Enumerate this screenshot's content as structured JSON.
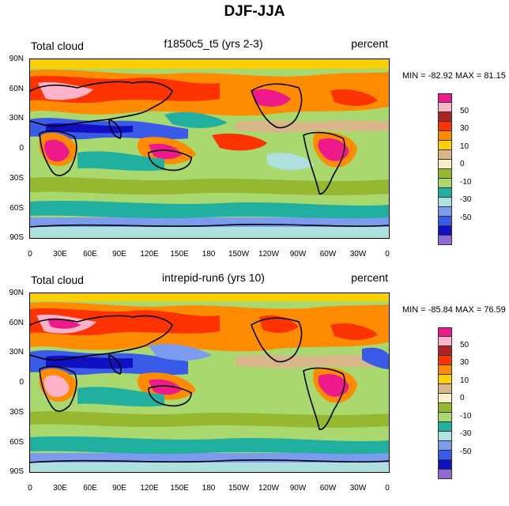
{
  "figure_title": "DJF-JJA",
  "panels": [
    {
      "left_label": "Total cloud",
      "center_label": "f1850c5_t5 (yrs 2-3)",
      "right_label": "percent",
      "min_max": "MIN = -82.92 MAX =  81.15"
    },
    {
      "left_label": "Total cloud",
      "center_label": "intrepid-run6 (yrs 10)",
      "right_label": "percent",
      "min_max": "MIN = -85.84 MAX =  76.59"
    }
  ],
  "lat_ticks": [
    "90N",
    "60N",
    "30N",
    "0",
    "30S",
    "60S",
    "90S"
  ],
  "lon_ticks": [
    "0",
    "30E",
    "60E",
    "90E",
    "120E",
    "150E",
    "180",
    "150W",
    "120W",
    "90W",
    "60W",
    "30W",
    "0"
  ],
  "legend": {
    "colors": [
      "#ee1a8c",
      "#ffb3c8",
      "#b02323",
      "#ff3300",
      "#ff8c00",
      "#ffd000",
      "#d9b68a",
      "#fbeec7",
      "#95b830",
      "#a9d86e",
      "#21b0a0",
      "#aee0e0",
      "#7b9cee",
      "#3a5ae8",
      "#1010c0",
      "#8f6ad6"
    ],
    "labels": [
      "50",
      "30",
      "10",
      "0",
      "-10",
      "-30",
      "-50"
    ]
  },
  "colors": {
    "pink": "#ee1a8c",
    "light_pink": "#ffb3c8",
    "dark_red": "#b02323",
    "red": "#ff3300",
    "orange": "#ff8c00",
    "yellow": "#ffd000",
    "tan": "#d9b68a",
    "cream": "#fbeec7",
    "olive": "#95b830",
    "light_green": "#a9d86e",
    "teal": "#21b0a0",
    "light_cyan": "#aee0e0",
    "light_blue": "#7b9cee",
    "blue": "#3a5ae8",
    "navy": "#1010c0",
    "purple": "#8f6ad6"
  }
}
